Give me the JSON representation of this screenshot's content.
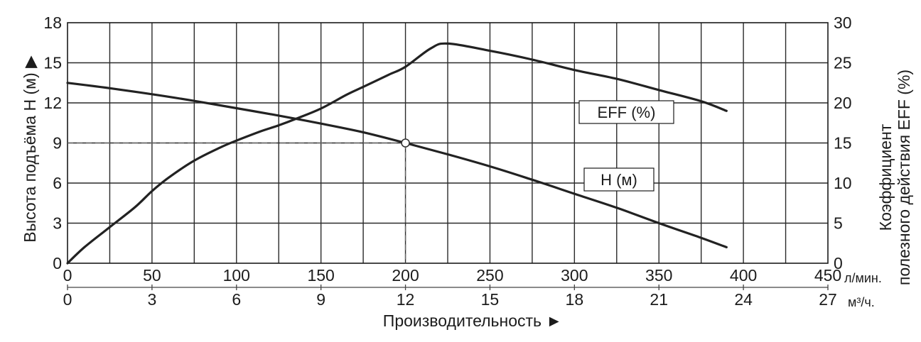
{
  "chart_data": {
    "type": "line",
    "ylabel_left": "Высота подъёма H (м) ▶",
    "ylabel_right_line1": "Коэффициент",
    "ylabel_right_line2": "полезного действия EFF (%)",
    "xlabel": "Производительность ►",
    "unit_lpm": "л/мин.",
    "unit_m3h": "м³/ч.",
    "xlim": [
      0,
      450
    ],
    "ylim_left": [
      0,
      18
    ],
    "ylim_right": [
      0,
      30
    ],
    "x_ticks_lpm": [
      "0",
      "50",
      "100",
      "150",
      "200",
      "250",
      "300",
      "350",
      "400",
      "450"
    ],
    "x_ticks_m3h": [
      "0",
      "3",
      "6",
      "9",
      "12",
      "15",
      "18",
      "21",
      "24",
      "27"
    ],
    "y_ticks_left": [
      "0",
      "3",
      "6",
      "9",
      "12",
      "15",
      "18"
    ],
    "y_ticks_right": [
      "0",
      "5",
      "10",
      "15",
      "20",
      "25",
      "30"
    ],
    "grid": true,
    "series": [
      {
        "name": "H (м)",
        "axis": "left",
        "x": [
          0,
          25,
          50,
          75,
          100,
          125,
          150,
          175,
          200,
          225,
          250,
          275,
          300,
          325,
          350,
          375,
          390
        ],
        "values": [
          13.5,
          13.1,
          12.65,
          12.15,
          11.6,
          11.05,
          10.45,
          9.8,
          9.0,
          8.15,
          7.25,
          6.25,
          5.2,
          4.15,
          3.0,
          1.9,
          1.2
        ]
      },
      {
        "name": "EFF (%)",
        "axis": "right",
        "x": [
          0,
          10,
          25,
          40,
          50,
          60,
          75,
          90,
          100,
          115,
          125,
          135,
          150,
          165,
          175,
          190,
          200,
          215,
          225,
          250,
          275,
          300,
          325,
          350,
          375,
          390
        ],
        "values": [
          0,
          2.0,
          4.5,
          7.0,
          9.0,
          10.7,
          12.8,
          14.4,
          15.3,
          16.5,
          17.2,
          18.0,
          19.3,
          21.0,
          22.0,
          23.5,
          24.5,
          26.8,
          27.4,
          26.5,
          25.4,
          24.1,
          23.0,
          21.6,
          20.2,
          19.0
        ]
      }
    ],
    "operating_point": {
      "x": 200,
      "y": 9
    }
  }
}
